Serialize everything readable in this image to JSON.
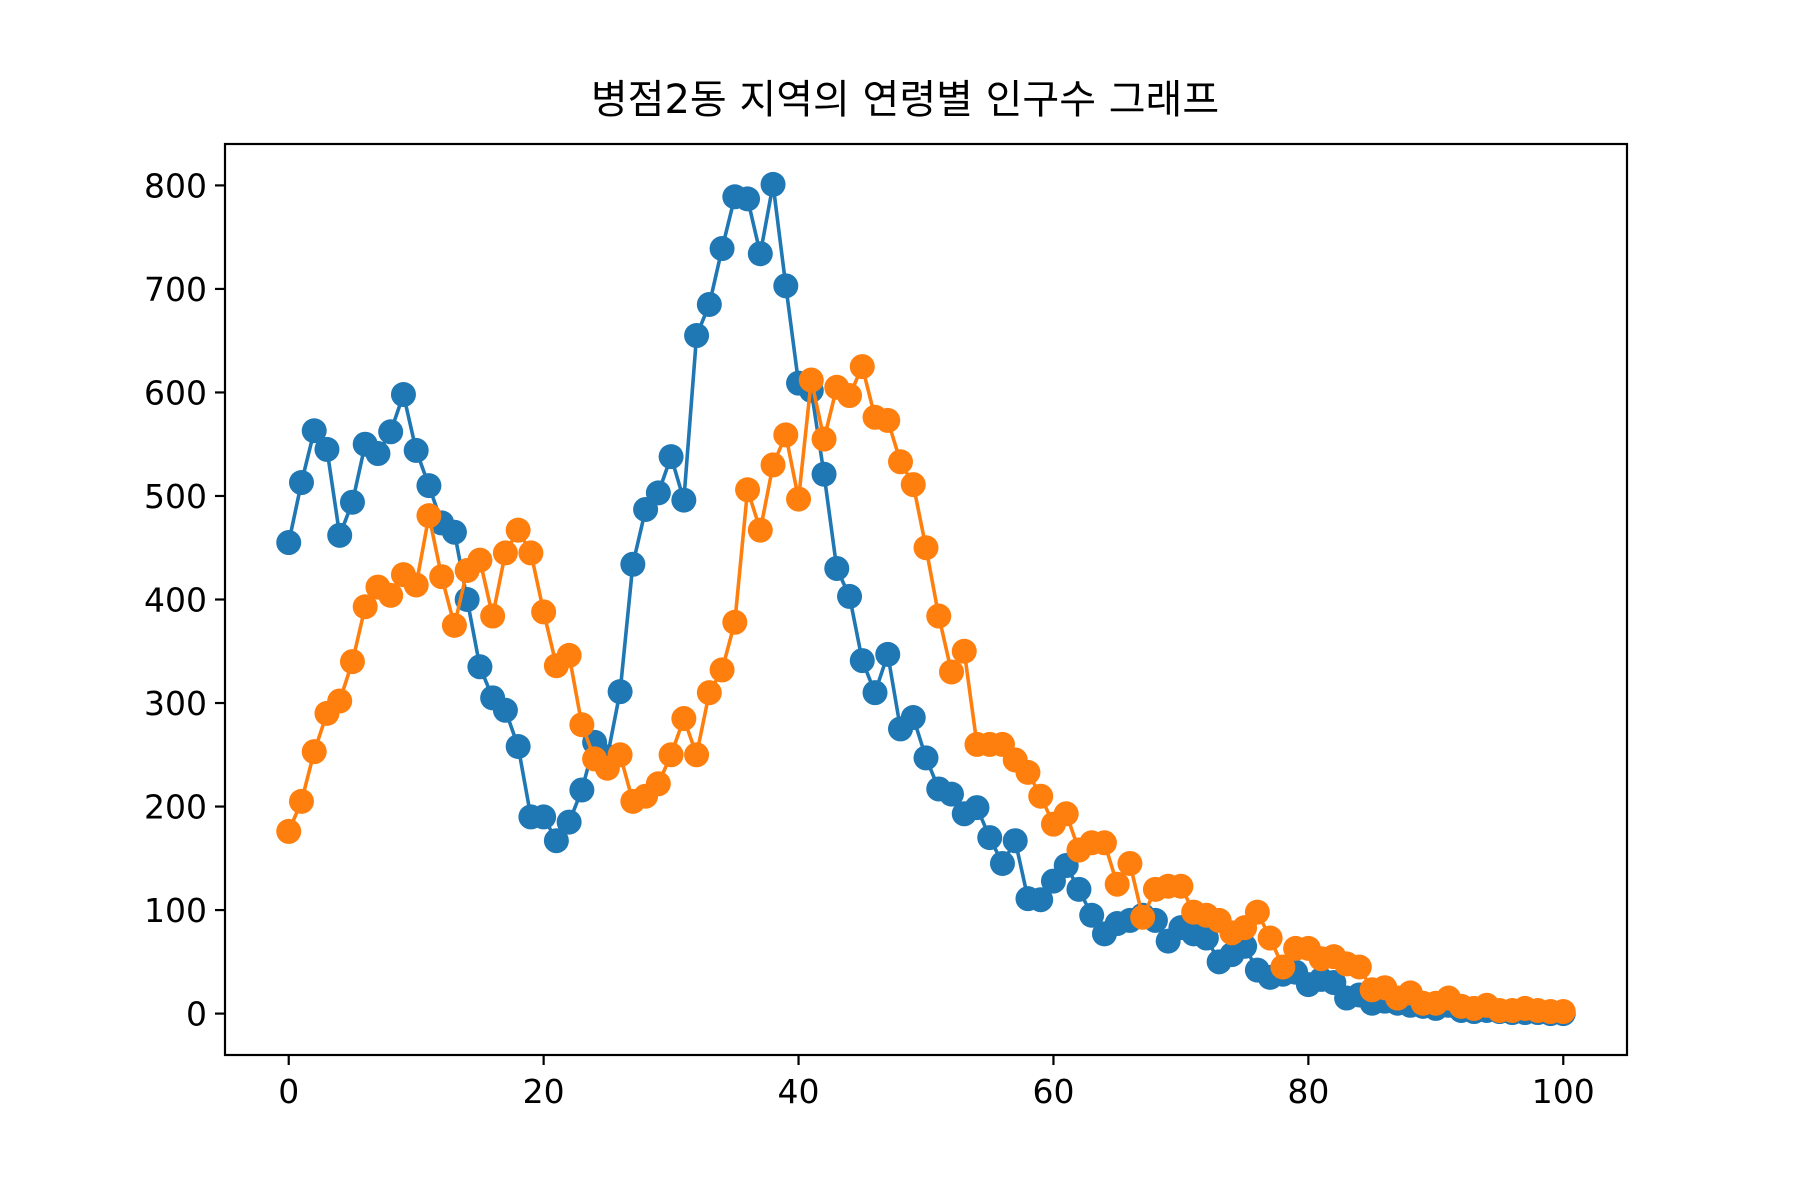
{
  "chart_data": {
    "type": "line",
    "title": "병점2동 지역의 연령별 인구수 그래프",
    "xlabel": "",
    "ylabel": "",
    "xlim": [
      -5,
      105
    ],
    "ylim": [
      -40,
      840
    ],
    "xticks": [
      0,
      20,
      40,
      60,
      80,
      100
    ],
    "yticks": [
      0,
      100,
      200,
      300,
      400,
      500,
      600,
      700,
      800
    ],
    "grid": false,
    "legend": "none",
    "marker": "circle",
    "x": [
      0,
      1,
      2,
      3,
      4,
      5,
      6,
      7,
      8,
      9,
      10,
      11,
      12,
      13,
      14,
      15,
      16,
      17,
      18,
      19,
      20,
      21,
      22,
      23,
      24,
      25,
      26,
      27,
      28,
      29,
      30,
      31,
      32,
      33,
      34,
      35,
      36,
      37,
      38,
      39,
      40,
      41,
      42,
      43,
      44,
      45,
      46,
      47,
      48,
      49,
      50,
      51,
      52,
      53,
      54,
      55,
      56,
      57,
      58,
      59,
      60,
      61,
      62,
      63,
      64,
      65,
      66,
      67,
      68,
      69,
      70,
      71,
      72,
      73,
      74,
      75,
      76,
      77,
      78,
      79,
      80,
      81,
      82,
      83,
      84,
      85,
      86,
      87,
      88,
      89,
      90,
      91,
      92,
      93,
      94,
      95,
      96,
      97,
      98,
      99,
      100
    ],
    "series": [
      {
        "color": "#1f77b4",
        "values": [
          455,
          513,
          563,
          545,
          462,
          494,
          550,
          541,
          562,
          598,
          544,
          510,
          474,
          465,
          400,
          335,
          305,
          293,
          258,
          190,
          190,
          167,
          185,
          216,
          262,
          248,
          311,
          434,
          487,
          503,
          538,
          496,
          655,
          685,
          739,
          789,
          787,
          734,
          801,
          703,
          609,
          602,
          521,
          430,
          403,
          341,
          310,
          347,
          275,
          286,
          247,
          217,
          212,
          193,
          199,
          170,
          145,
          167,
          111,
          110,
          128,
          143,
          120,
          95,
          77,
          87,
          90,
          95,
          90,
          70,
          83,
          77,
          73,
          50,
          57,
          65,
          42,
          35,
          38,
          40,
          28,
          33,
          30,
          15,
          18,
          10,
          12,
          10,
          8,
          7,
          5,
          8,
          3,
          2,
          3,
          2,
          1,
          1,
          1,
          0,
          0
        ]
      },
      {
        "color": "#ff7f0e",
        "values": [
          176,
          205,
          253,
          290,
          302,
          340,
          393,
          412,
          404,
          424,
          414,
          481,
          422,
          375,
          428,
          438,
          384,
          445,
          467,
          445,
          388,
          336,
          346,
          279,
          246,
          237,
          250,
          205,
          210,
          222,
          250,
          285,
          250,
          310,
          332,
          378,
          506,
          467,
          530,
          559,
          497,
          612,
          555,
          605,
          597,
          625,
          576,
          573,
          533,
          511,
          450,
          384,
          330,
          350,
          260,
          260,
          260,
          245,
          233,
          210,
          183,
          193,
          158,
          165,
          165,
          125,
          145,
          93,
          120,
          123,
          123,
          98,
          95,
          90,
          78,
          83,
          98,
          73,
          45,
          63,
          63,
          53,
          55,
          48,
          45,
          23,
          25,
          15,
          20,
          10,
          10,
          15,
          7,
          5,
          8,
          3,
          3,
          5,
          3,
          2,
          2
        ]
      }
    ]
  }
}
